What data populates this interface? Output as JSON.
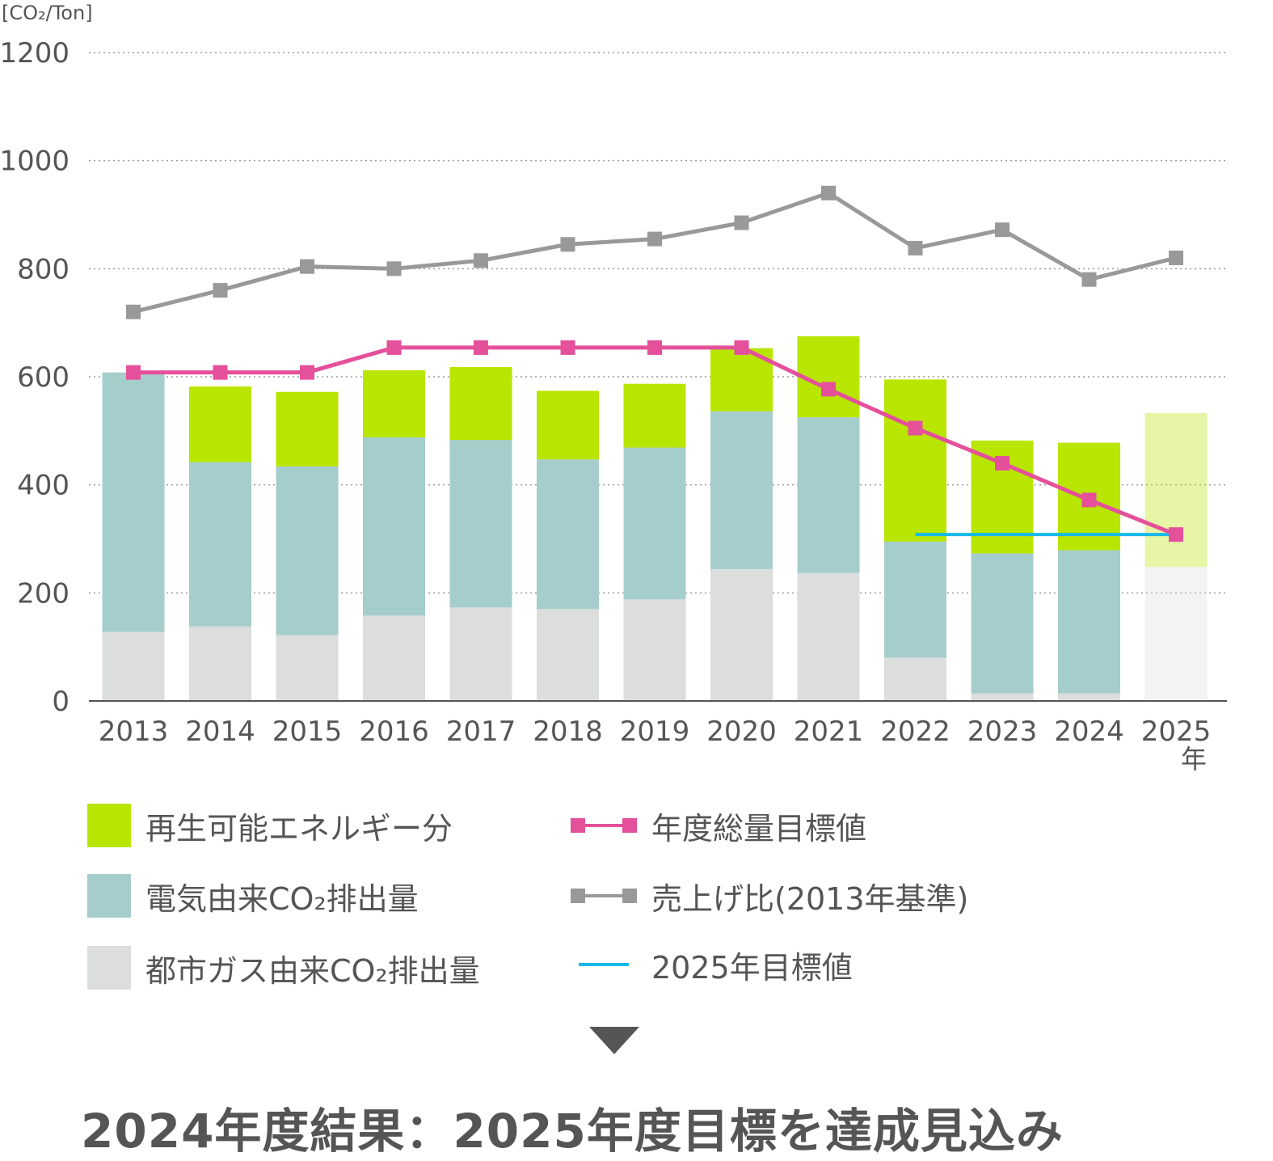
{
  "chart_data": {
    "type": "bar",
    "stacked": true,
    "y_unit_label": "[CO₂/Ton]",
    "ylim": [
      0,
      1200
    ],
    "y_ticks": [
      0,
      200,
      400,
      600,
      800,
      1000,
      1200
    ],
    "grid": "horizontal dotted",
    "categories": [
      "2013",
      "2014",
      "2015",
      "2016",
      "2017",
      "2018",
      "2019",
      "2020",
      "2021",
      "2022",
      "2023",
      "2024",
      "2025"
    ],
    "x_suffix": "年",
    "series": [
      {
        "name": "都市ガス由来CO₂排出量",
        "kind": "bar",
        "color": "#dcdddd",
        "values": [
          128,
          138,
          122,
          158,
          173,
          170,
          188,
          244,
          237,
          80,
          14,
          14,
          248
        ]
      },
      {
        "name": "電気由来CO₂排出量",
        "kind": "bar",
        "color": "#a5cdcc",
        "values": [
          480,
          304,
          312,
          330,
          310,
          277,
          281,
          292,
          288,
          215,
          259,
          265,
          0
        ]
      },
      {
        "name": "再生可能エネルギー分",
        "kind": "bar",
        "color": "#b8e600",
        "values": [
          0,
          140,
          138,
          124,
          135,
          127,
          118,
          117,
          150,
          300,
          209,
          199,
          285
        ]
      },
      {
        "name": "年度総量目標値",
        "kind": "line",
        "color": "#e5509a",
        "values": [
          608,
          608,
          608,
          654,
          654,
          654,
          654,
          654,
          577,
          505,
          440,
          372,
          308
        ]
      },
      {
        "name": "売上げ比(2013年基準)",
        "kind": "line",
        "color": "#999999",
        "values": [
          720,
          760,
          804,
          800,
          815,
          845,
          855,
          885,
          940,
          838,
          872,
          780,
          820
        ]
      }
    ],
    "projected_category": "2025",
    "target_2025": {
      "name": "2025年目標値",
      "value": 308,
      "color": "#19b9ea",
      "from": "2022",
      "to": "2025"
    }
  },
  "legend": [
    {
      "label": "再生可能エネルギー分",
      "type": "box",
      "color": "#b8e600"
    },
    {
      "label": "電気由来CO₂排出量",
      "type": "box",
      "color": "#a5cdcc"
    },
    {
      "label": "都市ガス由来CO₂排出量",
      "type": "box",
      "color": "#dcdddd"
    },
    {
      "label": "年度総量目標値",
      "type": "marker-line",
      "color": "#e5509a"
    },
    {
      "label": "売上げ比(2013年基準)",
      "type": "marker-line",
      "color": "#999999"
    },
    {
      "label": "2025年目標値",
      "type": "line",
      "color": "#19b9ea"
    }
  ],
  "conclusion": "2024年度結果：2025年度目標を達成見込み"
}
